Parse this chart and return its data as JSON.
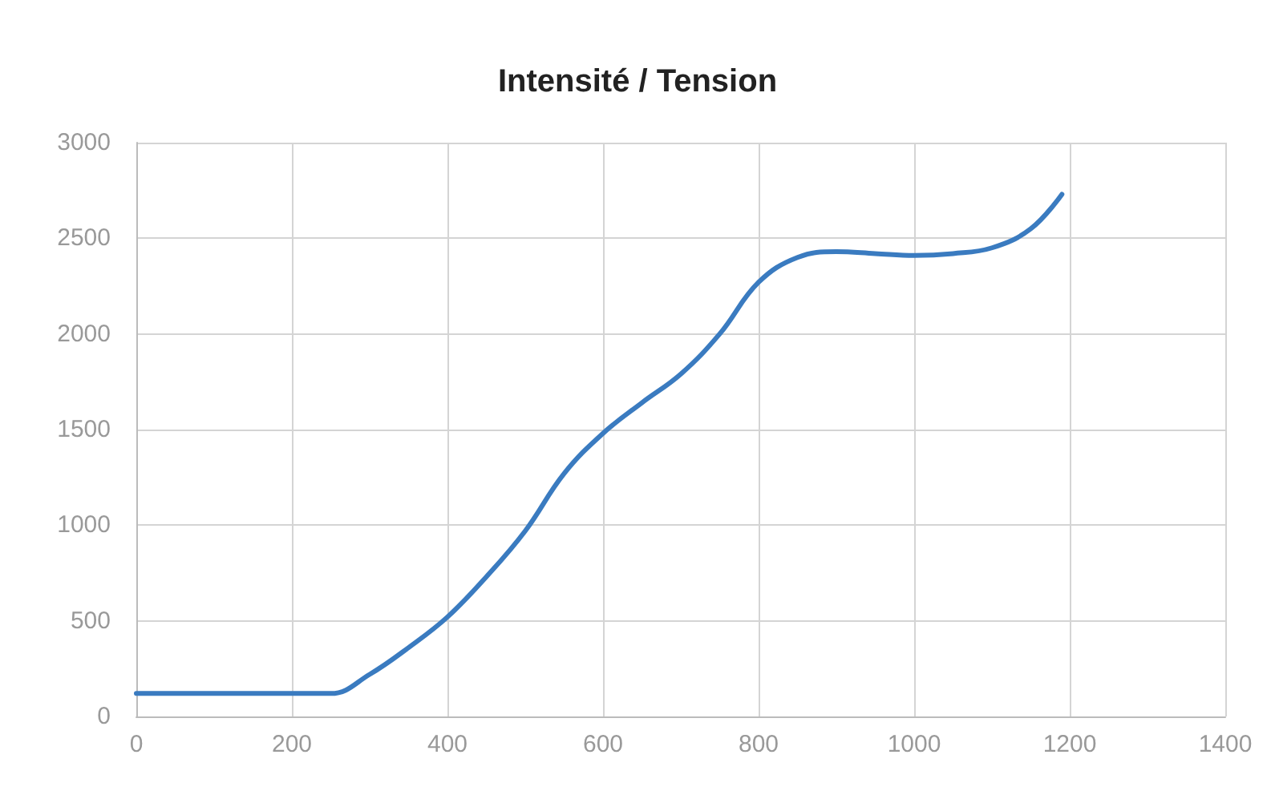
{
  "chart_data": {
    "type": "line",
    "title": "Intensité / Tension",
    "x": [
      0,
      250,
      300,
      350,
      400,
      450,
      500,
      550,
      600,
      650,
      700,
      750,
      800,
      850,
      900,
      950,
      1000,
      1050,
      1100,
      1150,
      1190
    ],
    "series": [
      {
        "color": "#3a7bc0",
        "values": [
          120,
          120,
          220,
          360,
          520,
          730,
          970,
          1270,
          1480,
          1640,
          1790,
          2000,
          2270,
          2400,
          2430,
          2420,
          2410,
          2420,
          2450,
          2550,
          2730
        ]
      }
    ],
    "xlim": [
      0,
      1400
    ],
    "xticks": [
      0,
      200,
      400,
      600,
      800,
      1000,
      1200,
      1400
    ],
    "ylim": [
      0,
      3000
    ],
    "yticks": [
      0,
      500,
      1000,
      1500,
      2000,
      2500,
      3000
    ],
    "grid": true,
    "marker": "none",
    "line_style": "solid"
  }
}
